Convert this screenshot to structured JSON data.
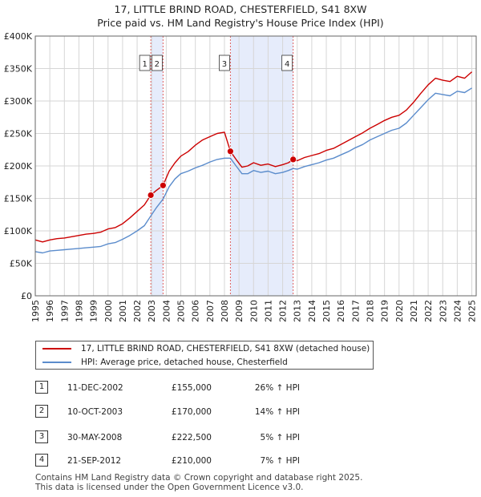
{
  "chart_data": {
    "type": "line",
    "title": "17, LITTLE BRIND ROAD, CHESTERFIELD, S41 8XW",
    "subtitle": "Price paid vs. HM Land Registry's House Price Index (HPI)",
    "xlim": [
      1995,
      2025.3
    ],
    "ylim": [
      0,
      400000
    ],
    "x_ticks": [
      "1995",
      "1996",
      "1997",
      "1998",
      "1999",
      "2000",
      "2001",
      "2002",
      "2003",
      "2004",
      "2005",
      "2006",
      "2007",
      "2008",
      "2009",
      "2010",
      "2011",
      "2012",
      "2013",
      "2014",
      "2015",
      "2016",
      "2017",
      "2018",
      "2019",
      "2020",
      "2021",
      "2022",
      "2023",
      "2024",
      "2025"
    ],
    "y_ticks": [
      {
        "value": 0,
        "label": "£0"
      },
      {
        "value": 50000,
        "label": "£50K"
      },
      {
        "value": 100000,
        "label": "£100K"
      },
      {
        "value": 150000,
        "label": "£150K"
      },
      {
        "value": 200000,
        "label": "£200K"
      },
      {
        "value": 250000,
        "label": "£250K"
      },
      {
        "value": 300000,
        "label": "£300K"
      },
      {
        "value": 350000,
        "label": "£350K"
      },
      {
        "value": 400000,
        "label": "£400K"
      }
    ],
    "grid": true,
    "shaded_ranges": [
      [
        2002.94,
        2003.78
      ],
      [
        2008.41,
        2012.72
      ]
    ],
    "series": [
      {
        "name": "17, LITTLE BRIND ROAD, CHESTERFIELD, S41 8XW (detached house)",
        "color": "#cc0000",
        "x": [
          1995,
          1995.5,
          1996,
          1996.5,
          1997,
          1997.5,
          1998,
          1998.5,
          1999,
          1999.5,
          2000,
          2000.5,
          2001,
          2001.5,
          2002,
          2002.5,
          2002.94,
          2003.3,
          2003.78,
          2004.2,
          2004.6,
          2005,
          2005.5,
          2006,
          2006.5,
          2007,
          2007.5,
          2008,
          2008.41,
          2008.8,
          2009.2,
          2009.6,
          2010,
          2010.5,
          2011,
          2011.5,
          2012,
          2012.4,
          2012.72,
          2013,
          2013.5,
          2014,
          2014.5,
          2015,
          2015.5,
          2016,
          2016.5,
          2017,
          2017.5,
          2018,
          2018.5,
          2019,
          2019.5,
          2020,
          2020.5,
          2021,
          2021.5,
          2022,
          2022.5,
          2023,
          2023.5,
          2024,
          2024.5,
          2025
        ],
        "values": [
          86000,
          83000,
          86000,
          88000,
          89000,
          91000,
          93000,
          95000,
          96000,
          98000,
          103000,
          105000,
          111000,
          120000,
          130000,
          140000,
          155000,
          162000,
          170000,
          192000,
          205000,
          215000,
          222000,
          232000,
          240000,
          245000,
          250000,
          252000,
          222500,
          210000,
          198000,
          200000,
          205000,
          201000,
          203000,
          199000,
          202000,
          205000,
          210000,
          208000,
          213000,
          216000,
          219000,
          224000,
          227000,
          233000,
          239000,
          245000,
          251000,
          258000,
          264000,
          270000,
          275000,
          278000,
          286000,
          298000,
          312000,
          325000,
          335000,
          332000,
          330000,
          338000,
          335000,
          345000
        ]
      },
      {
        "name": "HPI: Average price, detached house, Chesterfield",
        "color": "#5b8ccc",
        "x": [
          1995,
          1995.5,
          1996,
          1996.5,
          1997,
          1997.5,
          1998,
          1998.5,
          1999,
          1999.5,
          2000,
          2000.5,
          2001,
          2001.5,
          2002,
          2002.5,
          2002.94,
          2003.3,
          2003.78,
          2004.2,
          2004.6,
          2005,
          2005.5,
          2006,
          2006.5,
          2007,
          2007.5,
          2008,
          2008.41,
          2008.8,
          2009.2,
          2009.6,
          2010,
          2010.5,
          2011,
          2011.5,
          2012,
          2012.4,
          2012.72,
          2013,
          2013.5,
          2014,
          2014.5,
          2015,
          2015.5,
          2016,
          2016.5,
          2017,
          2017.5,
          2018,
          2018.5,
          2019,
          2019.5,
          2020,
          2020.5,
          2021,
          2021.5,
          2022,
          2022.5,
          2023,
          2023.5,
          2024,
          2024.5,
          2025
        ],
        "values": [
          68000,
          66000,
          69000,
          70000,
          71000,
          72000,
          73000,
          74000,
          75000,
          76000,
          80000,
          82000,
          87000,
          93000,
          100000,
          108000,
          123000,
          135000,
          149000,
          168000,
          180000,
          188000,
          192000,
          197000,
          201000,
          206000,
          210000,
          212000,
          212000,
          200000,
          188000,
          188000,
          193000,
          190000,
          192000,
          188000,
          190000,
          193000,
          196000,
          195000,
          199000,
          202000,
          205000,
          209000,
          212000,
          217000,
          222000,
          228000,
          233000,
          240000,
          245000,
          250000,
          255000,
          258000,
          266000,
          278000,
          290000,
          302000,
          312000,
          310000,
          308000,
          315000,
          313000,
          320000
        ]
      }
    ],
    "sales": [
      {
        "label": "1",
        "x": 2002.94,
        "price": 155000,
        "date": "11-DEC-2002",
        "price_text": "£155,000",
        "hpi_text": "26% ↑ HPI"
      },
      {
        "label": "2",
        "x": 2003.78,
        "price": 170000,
        "date": "10-OCT-2003",
        "price_text": "£170,000",
        "hpi_text": "14% ↑ HPI"
      },
      {
        "label": "3",
        "x": 2008.41,
        "price": 222500,
        "date": "30-MAY-2008",
        "price_text": "£222,500",
        "hpi_text": "5% ↑ HPI"
      },
      {
        "label": "4",
        "x": 2012.72,
        "price": 210000,
        "date": "21-SEP-2012",
        "price_text": "£210,000",
        "hpi_text": "7% ↑ HPI"
      }
    ]
  },
  "legend": {
    "series1_label": "17, LITTLE BRIND ROAD, CHESTERFIELD, S41 8XW (detached house)",
    "series2_label": "HPI: Average price, detached house, Chesterfield",
    "series1_color": "#cc0000",
    "series2_color": "#5b8ccc"
  },
  "footer": {
    "line1": "Contains HM Land Registry data © Crown copyright and database right 2025.",
    "line2": "This data is licensed under the Open Government Licence v3.0."
  }
}
